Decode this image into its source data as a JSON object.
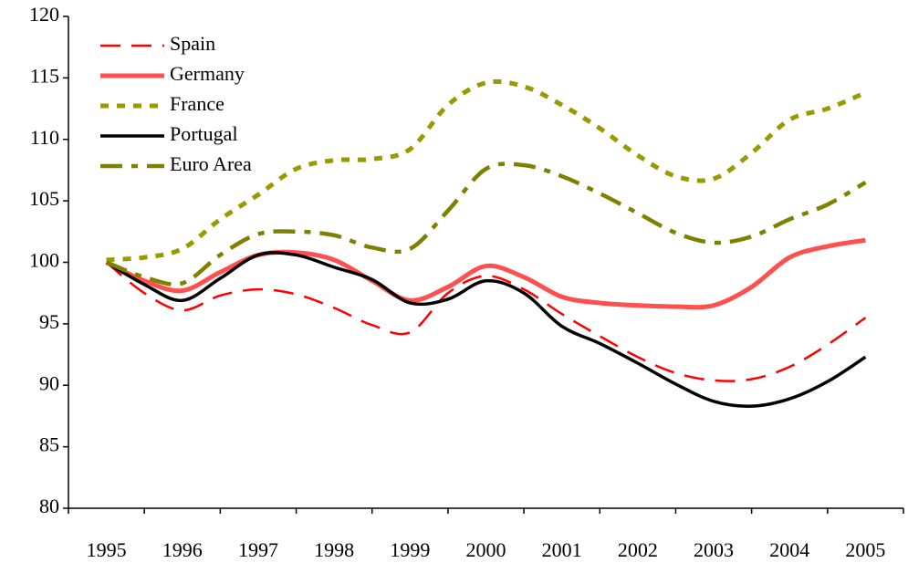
{
  "chart_data": {
    "type": "line",
    "categories": [
      "1995",
      null,
      "1996",
      null,
      "1997",
      null,
      "1998",
      null,
      "1999",
      null,
      "2000",
      null,
      "2001",
      null,
      "2002",
      null,
      "2003",
      null,
      "2004",
      null,
      "2005"
    ],
    "series": [
      {
        "name": "Spain",
        "color": "#ff0000",
        "line_style": "long-dash",
        "values": [
          100,
          97.5,
          96.1,
          97.3,
          97.8,
          97.4,
          96.3,
          94.9,
          94.3,
          97.5,
          98.9,
          97.8,
          95.8,
          94.0,
          92.3,
          91.0,
          90.4,
          90.5,
          91.5,
          93.3,
          95.5
        ]
      },
      {
        "name": "Germany",
        "color": "#ff5050",
        "line_style": "thick",
        "values": [
          100,
          98.5,
          97.7,
          99.2,
          100.6,
          100.8,
          100.2,
          98.5,
          96.9,
          98.0,
          99.7,
          98.8,
          97.2,
          96.7,
          96.5,
          96.4,
          96.5,
          98.0,
          100.4,
          101.3,
          101.8
        ]
      },
      {
        "name": "France",
        "color": "#999900",
        "line_style": "short-dash",
        "values": [
          100.2,
          100.4,
          101.1,
          103.5,
          105.5,
          107.6,
          108.3,
          108.4,
          109.2,
          112.8,
          114.6,
          114.3,
          112.8,
          110.9,
          108.7,
          107.0,
          106.8,
          108.9,
          111.6,
          112.5,
          113.8
        ]
      },
      {
        "name": "Portugal",
        "color": "#000000",
        "line_style": "solid",
        "values": [
          100,
          98.2,
          96.9,
          98.7,
          100.6,
          100.6,
          99.6,
          98.6,
          96.7,
          97.0,
          98.5,
          97.5,
          94.8,
          93.4,
          91.8,
          90.1,
          88.7,
          88.3,
          88.9,
          90.3,
          92.3
        ]
      },
      {
        "name": "Euro Area",
        "color": "#808000",
        "line_style": "dash-dot",
        "values": [
          100,
          98.8,
          98.3,
          100.6,
          102.3,
          102.5,
          102.2,
          101.2,
          101.1,
          104.2,
          107.6,
          107.9,
          107.0,
          105.6,
          104.0,
          102.4,
          101.6,
          102.1,
          103.5,
          104.7,
          106.5
        ]
      }
    ],
    "ylim": [
      80,
      120
    ],
    "yticks": [
      80,
      85,
      90,
      95,
      100,
      105,
      110,
      115,
      120
    ],
    "legend": "upper-left"
  }
}
